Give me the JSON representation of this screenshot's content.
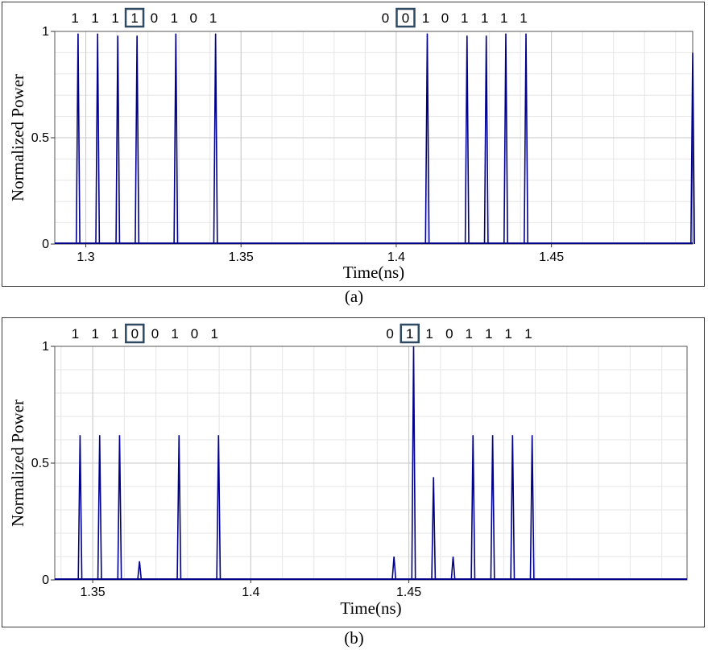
{
  "chart_data": [
    {
      "type": "line",
      "caption": "(a)",
      "xlabel": "Time(ns)",
      "ylabel": "Normalized Power",
      "xlim": [
        1.29,
        1.4955
      ],
      "ylim": [
        0,
        1
      ],
      "x_ticks": [
        {
          "value": 1.3,
          "label": "1.3"
        },
        {
          "value": 1.35,
          "label": "1.35"
        },
        {
          "value": 1.4,
          "label": "1.4"
        },
        {
          "value": 1.45,
          "label": "1.45"
        }
      ],
      "y_ticks": [
        {
          "value": 0,
          "label": "0"
        },
        {
          "value": 0.5,
          "label": "0.5"
        },
        {
          "value": 1,
          "label": "1"
        }
      ],
      "bits": [
        {
          "label": "1",
          "x": 1.2965,
          "boxed": false
        },
        {
          "label": "1",
          "x": 1.303,
          "boxed": false
        },
        {
          "label": "1",
          "x": 1.3095,
          "boxed": false
        },
        {
          "label": "1",
          "x": 1.3157,
          "boxed": true
        },
        {
          "label": "0",
          "x": 1.322,
          "boxed": false
        },
        {
          "label": "1",
          "x": 1.3285,
          "boxed": false
        },
        {
          "label": "0",
          "x": 1.3347,
          "boxed": false
        },
        {
          "label": "1",
          "x": 1.341,
          "boxed": false
        },
        {
          "label": "0",
          "x": 1.3965,
          "boxed": false
        },
        {
          "label": "0",
          "x": 1.403,
          "boxed": true
        },
        {
          "label": "1",
          "x": 1.4095,
          "boxed": false
        },
        {
          "label": "0",
          "x": 1.4157,
          "boxed": false
        },
        {
          "label": "1",
          "x": 1.422,
          "boxed": false
        },
        {
          "label": "1",
          "x": 1.4285,
          "boxed": false
        },
        {
          "label": "1",
          "x": 1.4347,
          "boxed": false
        },
        {
          "label": "1",
          "x": 1.441,
          "boxed": false
        }
      ],
      "pulses": [
        {
          "x": 1.2975,
          "y": 0.99
        },
        {
          "x": 1.3038,
          "y": 0.99
        },
        {
          "x": 1.3103,
          "y": 0.98
        },
        {
          "x": 1.3165,
          "y": 0.98
        },
        {
          "x": 1.329,
          "y": 0.99
        },
        {
          "x": 1.3418,
          "y": 0.99
        },
        {
          "x": 1.41,
          "y": 0.99
        },
        {
          "x": 1.4228,
          "y": 0.98
        },
        {
          "x": 1.429,
          "y": 0.98
        },
        {
          "x": 1.4353,
          "y": 0.99
        },
        {
          "x": 1.4418,
          "y": 0.99
        },
        {
          "x": 1.4955,
          "y": 0.9
        }
      ]
    },
    {
      "type": "line",
      "caption": "(b)",
      "xlabel": "Time(ns)",
      "ylabel": "Normalized Power",
      "xlim": [
        1.338,
        1.538
      ],
      "ylim": [
        0,
        1
      ],
      "x_ticks": [
        {
          "value": 1.35,
          "label": "1.35"
        },
        {
          "value": 1.4,
          "label": "1.4"
        },
        {
          "value": 1.45,
          "label": "1.45"
        }
      ],
      "y_ticks": [
        {
          "value": 0,
          "label": "0"
        },
        {
          "value": 0.5,
          "label": "0.5"
        },
        {
          "value": 1,
          "label": "1"
        }
      ],
      "bits": [
        {
          "label": "1",
          "x": 1.3445,
          "boxed": false
        },
        {
          "label": "1",
          "x": 1.3508,
          "boxed": false
        },
        {
          "label": "1",
          "x": 1.357,
          "boxed": false
        },
        {
          "label": "0",
          "x": 1.3633,
          "boxed": true
        },
        {
          "label": "0",
          "x": 1.3697,
          "boxed": false
        },
        {
          "label": "1",
          "x": 1.376,
          "boxed": false
        },
        {
          "label": "0",
          "x": 1.3822,
          "boxed": false
        },
        {
          "label": "1",
          "x": 1.3885,
          "boxed": false
        },
        {
          "label": "0",
          "x": 1.444,
          "boxed": false
        },
        {
          "label": "1",
          "x": 1.4503,
          "boxed": true
        },
        {
          "label": "1",
          "x": 1.4565,
          "boxed": false
        },
        {
          "label": "0",
          "x": 1.4628,
          "boxed": false
        },
        {
          "label": "1",
          "x": 1.469,
          "boxed": false
        },
        {
          "label": "1",
          "x": 1.4753,
          "boxed": false
        },
        {
          "label": "1",
          "x": 1.4815,
          "boxed": false
        },
        {
          "label": "1",
          "x": 1.4878,
          "boxed": false
        }
      ],
      "pulses": [
        {
          "x": 1.346,
          "y": 0.62
        },
        {
          "x": 1.3522,
          "y": 0.62
        },
        {
          "x": 1.3585,
          "y": 0.62
        },
        {
          "x": 1.3648,
          "y": 0.08
        },
        {
          "x": 1.3773,
          "y": 0.62
        },
        {
          "x": 1.3898,
          "y": 0.62
        },
        {
          "x": 1.4453,
          "y": 0.1
        },
        {
          "x": 1.4515,
          "y": 1.0
        },
        {
          "x": 1.4578,
          "y": 0.44
        },
        {
          "x": 1.464,
          "y": 0.1
        },
        {
          "x": 1.4703,
          "y": 0.62
        },
        {
          "x": 1.4765,
          "y": 0.62
        },
        {
          "x": 1.4828,
          "y": 0.62
        },
        {
          "x": 1.489,
          "y": 0.62
        }
      ]
    }
  ],
  "style": {
    "trace_color": "#00008b",
    "box_color": "#2e4a62",
    "grid_major": "#c8c8c8",
    "grid_minor": "#e6e6e6"
  }
}
